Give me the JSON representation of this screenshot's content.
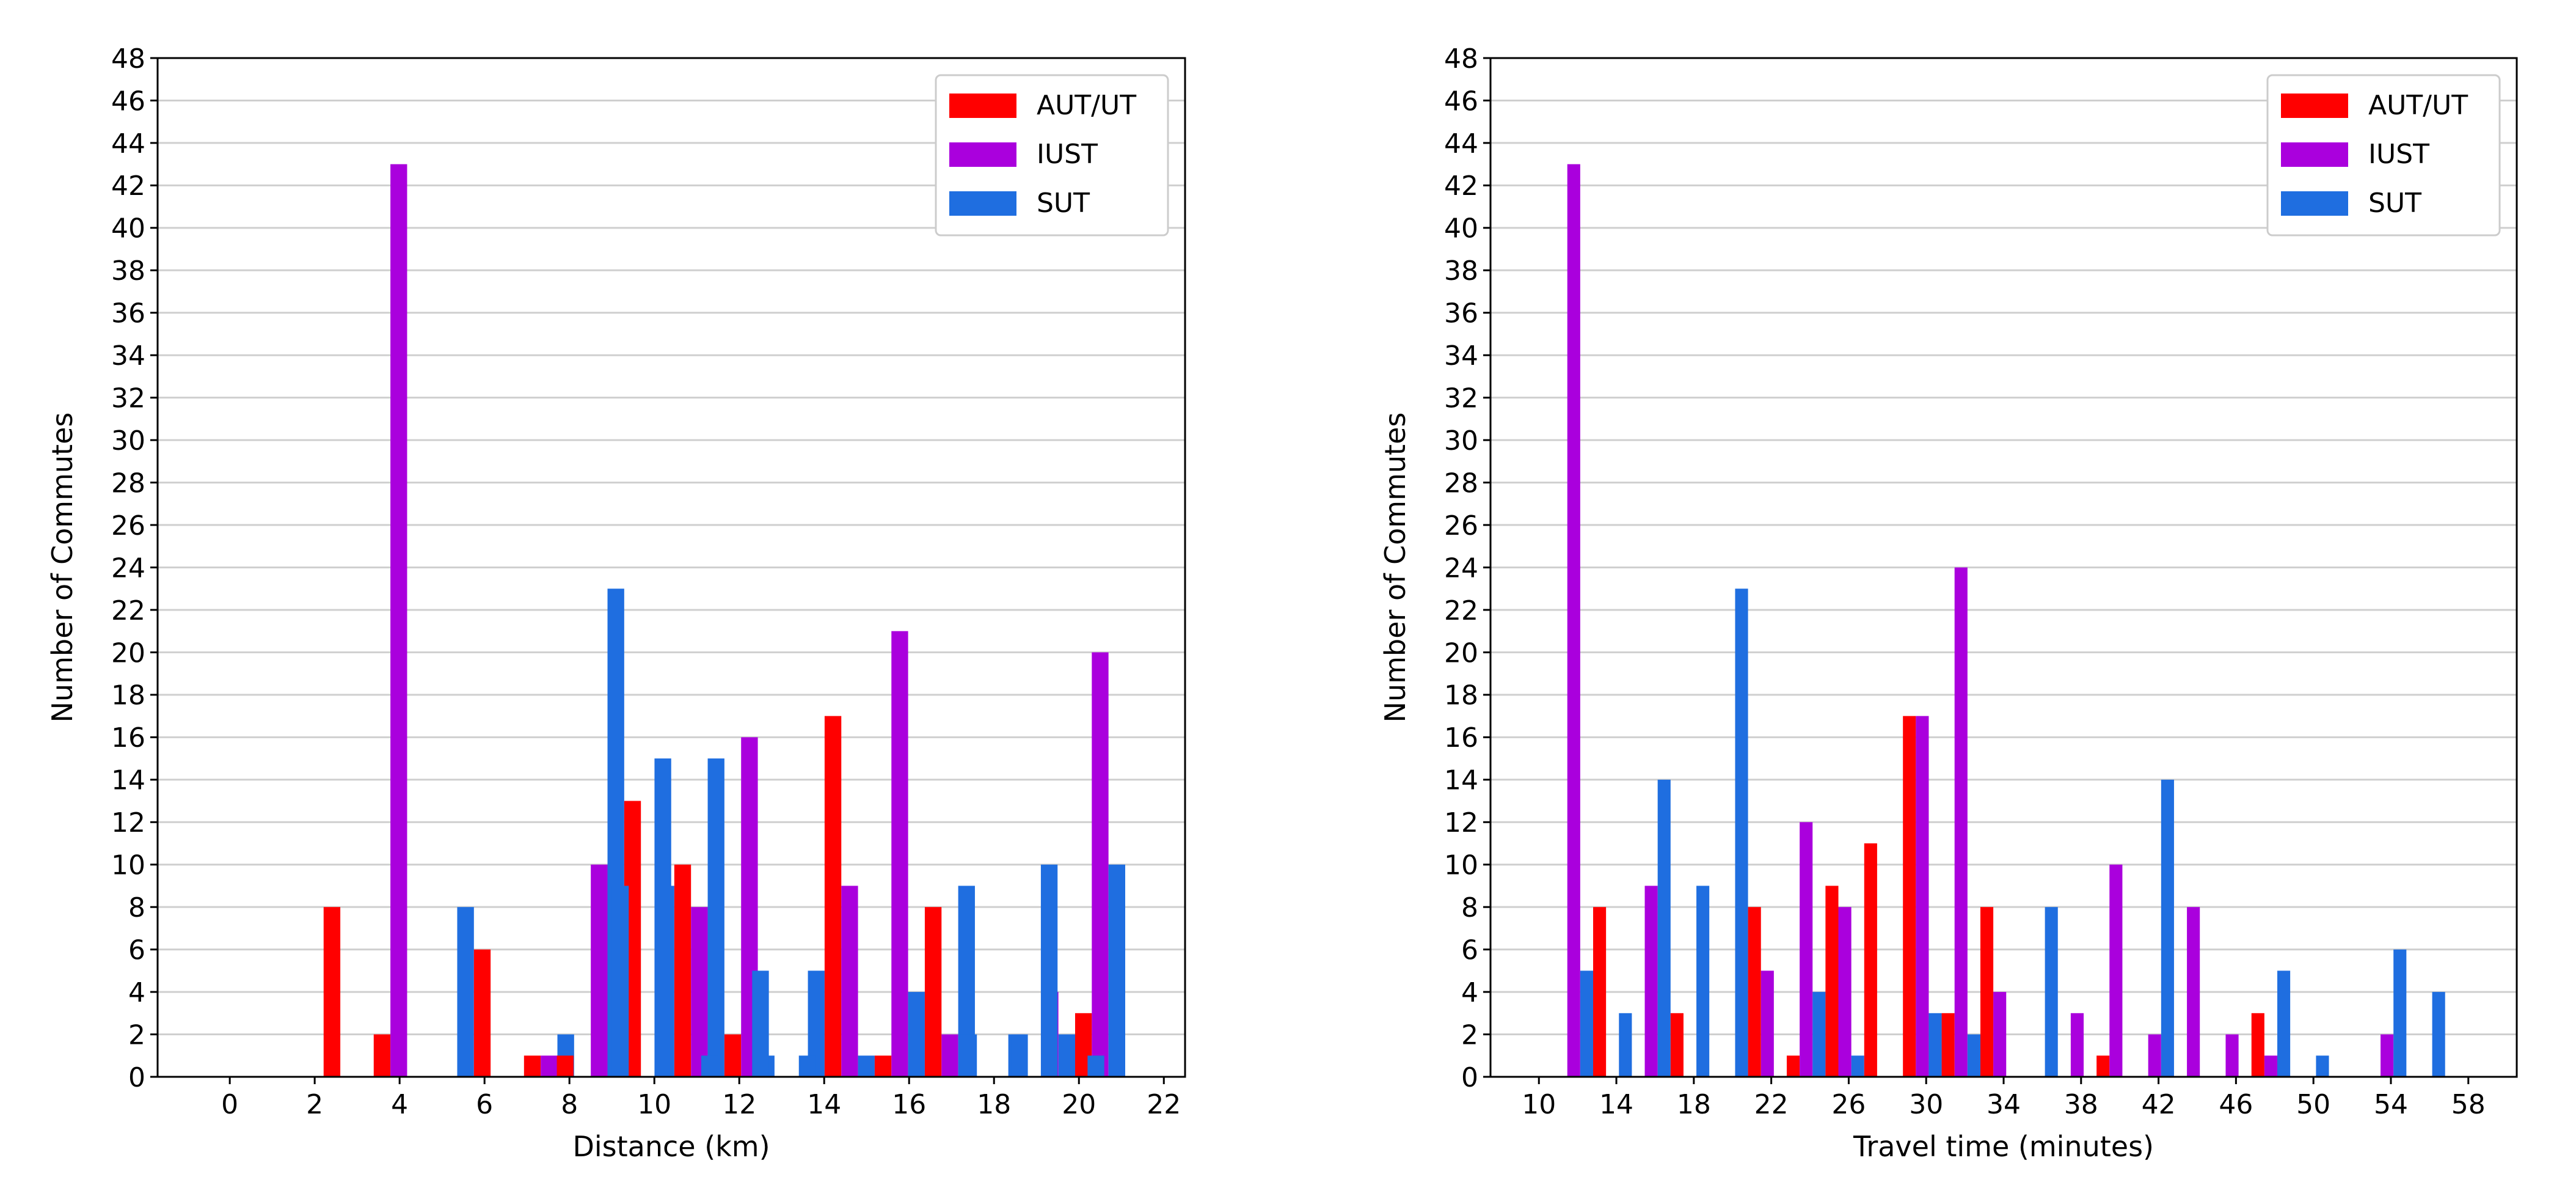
{
  "chart_data": [
    {
      "type": "bar",
      "xlabel": "Distance (km)",
      "ylabel": "Number of Commutes",
      "xlim": [
        -1.7,
        22.5
      ],
      "ylim": [
        0,
        48
      ],
      "xticks": [
        0,
        2,
        4,
        6,
        8,
        10,
        12,
        14,
        16,
        18,
        20,
        22
      ],
      "yticks": [
        0,
        2,
        4,
        6,
        8,
        10,
        12,
        14,
        16,
        18,
        20,
        22,
        24,
        26,
        28,
        30,
        32,
        34,
        36,
        38,
        40,
        42,
        44,
        46,
        48
      ],
      "grid": "horizontal",
      "legend_position": "top-right",
      "bin_width": 1.18,
      "bins": [
        2.8,
        3.98,
        5.16,
        6.34,
        7.52,
        8.7,
        9.88,
        11.06,
        12.24,
        13.42,
        14.6,
        15.78,
        16.96,
        18.14,
        19.32,
        20.5
      ],
      "series": [
        {
          "name": "AUT/UT",
          "color": "#ff0000",
          "values": [
            8,
            2,
            0,
            6,
            1,
            0,
            13,
            10,
            2,
            0,
            17,
            1,
            8,
            0,
            0,
            3
          ]
        },
        {
          "name": "IUST",
          "color": "#aa00dd",
          "values": [
            0,
            43,
            0,
            0,
            1,
            10,
            0,
            8,
            16,
            0,
            9,
            21,
            2,
            0,
            4,
            20
          ]
        },
        {
          "name": "SUT",
          "color": "#1f6ee0",
          "values": [
            0,
            0,
            8,
            0,
            2,
            23,
            9,
            15,
            1,
            5,
            1,
            4,
            9,
            2,
            2,
            10
          ]
        }
      ],
      "extra_bars": [
        {
          "series": "AUT/UT",
          "x": 7.9,
          "value": 1
        },
        {
          "series": "SUT",
          "x": 9.2,
          "value": 9
        },
        {
          "series": "SUT",
          "x": 10.2,
          "value": 15
        },
        {
          "series": "SUT",
          "x": 11.3,
          "value": 1
        },
        {
          "series": "SUT",
          "x": 12.5,
          "value": 5
        },
        {
          "series": "SUT",
          "x": 13.6,
          "value": 1
        },
        {
          "series": "SUT",
          "x": 17.4,
          "value": 2
        },
        {
          "series": "SUT",
          "x": 18.6,
          "value": 2
        },
        {
          "series": "SUT",
          "x": 19.3,
          "value": 10
        },
        {
          "series": "SUT",
          "x": 20.4,
          "value": 1
        }
      ]
    },
    {
      "type": "bar",
      "xlabel": "Travel time (minutes)",
      "ylabel": "Number of Commutes",
      "xlim": [
        7.5,
        60.5
      ],
      "ylim": [
        0,
        48
      ],
      "xticks": [
        10,
        14,
        18,
        22,
        26,
        30,
        34,
        38,
        42,
        46,
        50,
        54,
        58
      ],
      "yticks": [
        0,
        2,
        4,
        6,
        8,
        10,
        12,
        14,
        16,
        18,
        20,
        22,
        24,
        26,
        28,
        30,
        32,
        34,
        36,
        38,
        40,
        42,
        44,
        46,
        48
      ],
      "grid": "horizontal",
      "legend_position": "top-right",
      "bin_width": 2.0,
      "bins": [
        11.8,
        13.8,
        15.8,
        17.8,
        19.8,
        21.8,
        23.8,
        25.8,
        27.8,
        29.8,
        31.8,
        33.8,
        35.8,
        37.8,
        39.8,
        41.8,
        43.8,
        45.8,
        47.8,
        49.8,
        51.8,
        53.8,
        55.8
      ],
      "series": [
        {
          "name": "AUT/UT",
          "color": "#ff0000",
          "values": [
            0,
            8,
            0,
            3,
            0,
            8,
            1,
            9,
            11,
            17,
            3,
            8,
            0,
            0,
            1,
            0,
            0,
            0,
            3,
            0,
            0,
            0,
            0
          ]
        },
        {
          "name": "IUST",
          "color": "#aa00dd",
          "values": [
            43,
            0,
            9,
            0,
            0,
            5,
            12,
            8,
            0,
            17,
            24,
            4,
            0,
            3,
            10,
            2,
            8,
            2,
            1,
            0,
            0,
            2,
            0
          ]
        },
        {
          "name": "SUT",
          "color": "#1f6ee0",
          "values": [
            5,
            3,
            14,
            9,
            23,
            0,
            4,
            1,
            0,
            3,
            2,
            0,
            8,
            0,
            0,
            14,
            0,
            0,
            5,
            1,
            0,
            6,
            4
          ]
        }
      ]
    }
  ]
}
